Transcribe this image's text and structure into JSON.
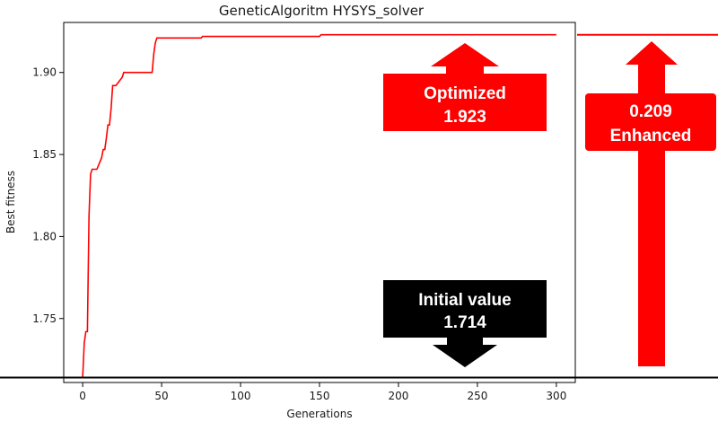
{
  "chart_data": {
    "type": "line",
    "title": "GeneticAlgoritm HYSYS_solver",
    "xlabel": "Generations",
    "ylabel": "Best fitness",
    "xlim": [
      -12,
      312
    ],
    "ylim": [
      1.711,
      1.9305
    ],
    "xticks": [
      0,
      50,
      100,
      150,
      200,
      250,
      300
    ],
    "yticks": [
      1.75,
      1.8,
      1.85,
      1.9
    ],
    "ytick_labels": [
      "1.75",
      "1.80",
      "1.85",
      "1.90"
    ],
    "grid": false,
    "series": [
      {
        "color": "#ff0000",
        "x": [
          0,
          1,
          2,
          3,
          4,
          5,
          6,
          7,
          8,
          9,
          12,
          13,
          14,
          15,
          16,
          17,
          18,
          19,
          20,
          21,
          25,
          26,
          27,
          28,
          44,
          45,
          46,
          47,
          48,
          75,
          76,
          150,
          151,
          300
        ],
        "y": [
          1.714,
          1.735,
          1.742,
          1.742,
          1.812,
          1.838,
          1.841,
          1.841,
          1.841,
          1.841,
          1.848,
          1.853,
          1.853,
          1.86,
          1.868,
          1.868,
          1.878,
          1.892,
          1.892,
          1.892,
          1.897,
          1.9,
          1.9,
          1.9,
          1.9,
          1.911,
          1.918,
          1.921,
          1.921,
          1.921,
          1.922,
          1.922,
          1.923,
          1.923
        ]
      }
    ],
    "reference_lines": {
      "initial_value": 1.714,
      "optimized_value": 1.923,
      "color_initial": "#000000",
      "color_optimized": "#ff0000"
    }
  },
  "callouts": {
    "optimized": {
      "line1": "Optimized",
      "line2": "1.923",
      "color": "#ff0000",
      "text_color": "#ffffff"
    },
    "initial": {
      "line1": "Initial value",
      "line2": "1.714",
      "color": "#000000",
      "text_color": "#ffffff"
    },
    "enhanced": {
      "line1": "0.209",
      "line2": "Enhanced",
      "color": "#ff0000",
      "text_color": "#ffffff"
    }
  }
}
